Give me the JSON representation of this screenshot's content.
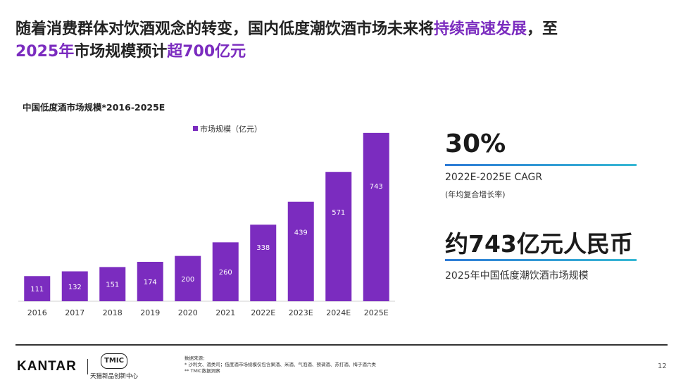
{
  "headline": {
    "part1": "随着消费群体对饮酒观念的转变，国内低度潮饮酒市场未来将",
    "highlight1": "持续高速发展",
    "part2": "，至",
    "highlight2": "2025年",
    "part3": "市场规模预计",
    "highlight3": "超700亿元"
  },
  "colors": {
    "accent": "#7b2cbf",
    "bar": "#7b2cbf",
    "kpi_line_start": "#2e7bd6",
    "kpi_line_end": "#37b8d4"
  },
  "chart_data": {
    "type": "bar",
    "title": "中国低度酒市场规模*2016-2025E",
    "legend": "市场规模（亿元）",
    "legend_position": "top-left",
    "categories": [
      "2016",
      "2017",
      "2018",
      "2019",
      "2020",
      "2021",
      "2022E",
      "2023E",
      "2024E",
      "2025E"
    ],
    "series": [
      {
        "name": "市场规模（亿元）",
        "values": [
          111,
          132,
          151,
          174,
          200,
          260,
          338,
          439,
          571,
          743
        ]
      }
    ],
    "ylim": [
      0,
      800
    ],
    "grid": false,
    "data_labels": true
  },
  "kpis": [
    {
      "value": "30%",
      "label": "2022E-2025E CAGR",
      "sub": "(年均复合增长率)"
    },
    {
      "value": "约743亿元人民币",
      "label": "2025年中国低度潮饮酒市场规模",
      "sub": ""
    }
  ],
  "footer": {
    "brand": "KANTAR",
    "partner_logo": "TMIC",
    "partner_name": "天猫新品创新中心",
    "sources_title": "数据来源：",
    "sources_line1": "* 沙利文、酒类司；低度酒市场规模仅包含果酒、米酒、气泡酒、预调酒、苏打酒、梅子酒六类",
    "sources_line2": "** TMIC数据洞察",
    "page_number": "12"
  }
}
